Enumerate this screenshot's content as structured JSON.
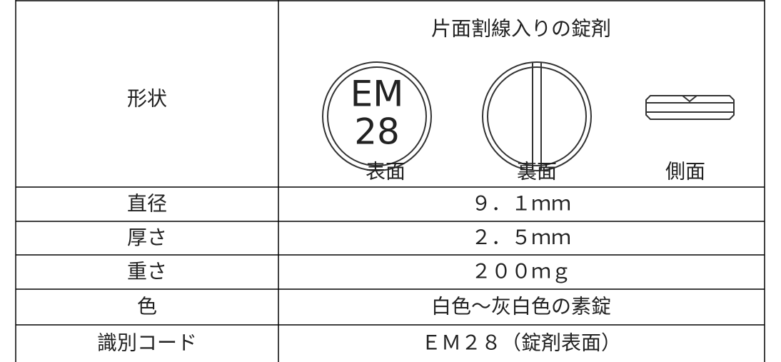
{
  "shape": {
    "label": "形状",
    "title": "片面割線入りの錠剤",
    "imprint": [
      "EM",
      "28"
    ],
    "views": [
      "表面",
      "裏面",
      "側面"
    ]
  },
  "rows": [
    [
      "直径",
      "９．１ｍｍ"
    ],
    [
      "厚さ",
      "２．５ｍｍ"
    ],
    [
      "重さ",
      "２００ｍｇ"
    ],
    [
      "色",
      "白色～灰白色の素錠"
    ],
    [
      "識別コード",
      "ＥＭ２８（錠剤表面）"
    ]
  ]
}
